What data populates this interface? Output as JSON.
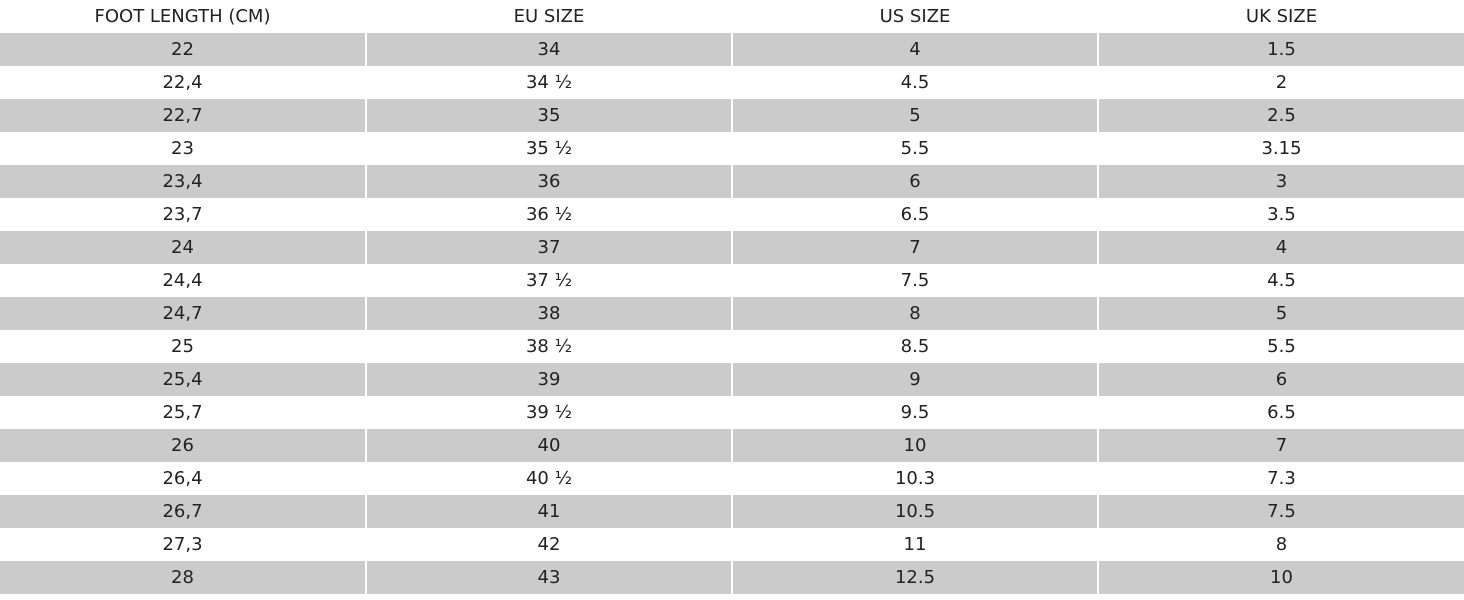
{
  "table": {
    "header": [
      "FOOT LENGTH (CM)",
      "EU SIZE",
      "US SIZE",
      "UK SIZE"
    ],
    "rows": [
      [
        "22",
        "34",
        "4",
        "1.5"
      ],
      [
        "22,4",
        "34 ½",
        "4.5",
        "2"
      ],
      [
        "22,7",
        "35",
        "5",
        "2.5"
      ],
      [
        "23",
        "35 ½",
        "5.5",
        "3.15"
      ],
      [
        "23,4",
        "36",
        "6",
        "3"
      ],
      [
        "23,7",
        "36 ½",
        "6.5",
        "3.5"
      ],
      [
        "24",
        "37",
        "7",
        "4"
      ],
      [
        "24,4",
        "37 ½",
        "7.5",
        "4.5"
      ],
      [
        "24,7",
        "38",
        "8",
        "5"
      ],
      [
        "25",
        "38 ½",
        "8.5",
        "5.5"
      ],
      [
        "25,4",
        "39",
        "9",
        "6"
      ],
      [
        "25,7",
        "39 ½",
        "9.5",
        "6.5"
      ],
      [
        "26",
        "40",
        "10",
        "7"
      ],
      [
        "26,4",
        "40 ½",
        "10.3",
        "7.3"
      ],
      [
        "26,7",
        "41",
        "10.5",
        "7.5"
      ],
      [
        "27,3",
        "42",
        "11",
        "8"
      ],
      [
        "28",
        "43",
        "12.5",
        "10"
      ]
    ]
  }
}
